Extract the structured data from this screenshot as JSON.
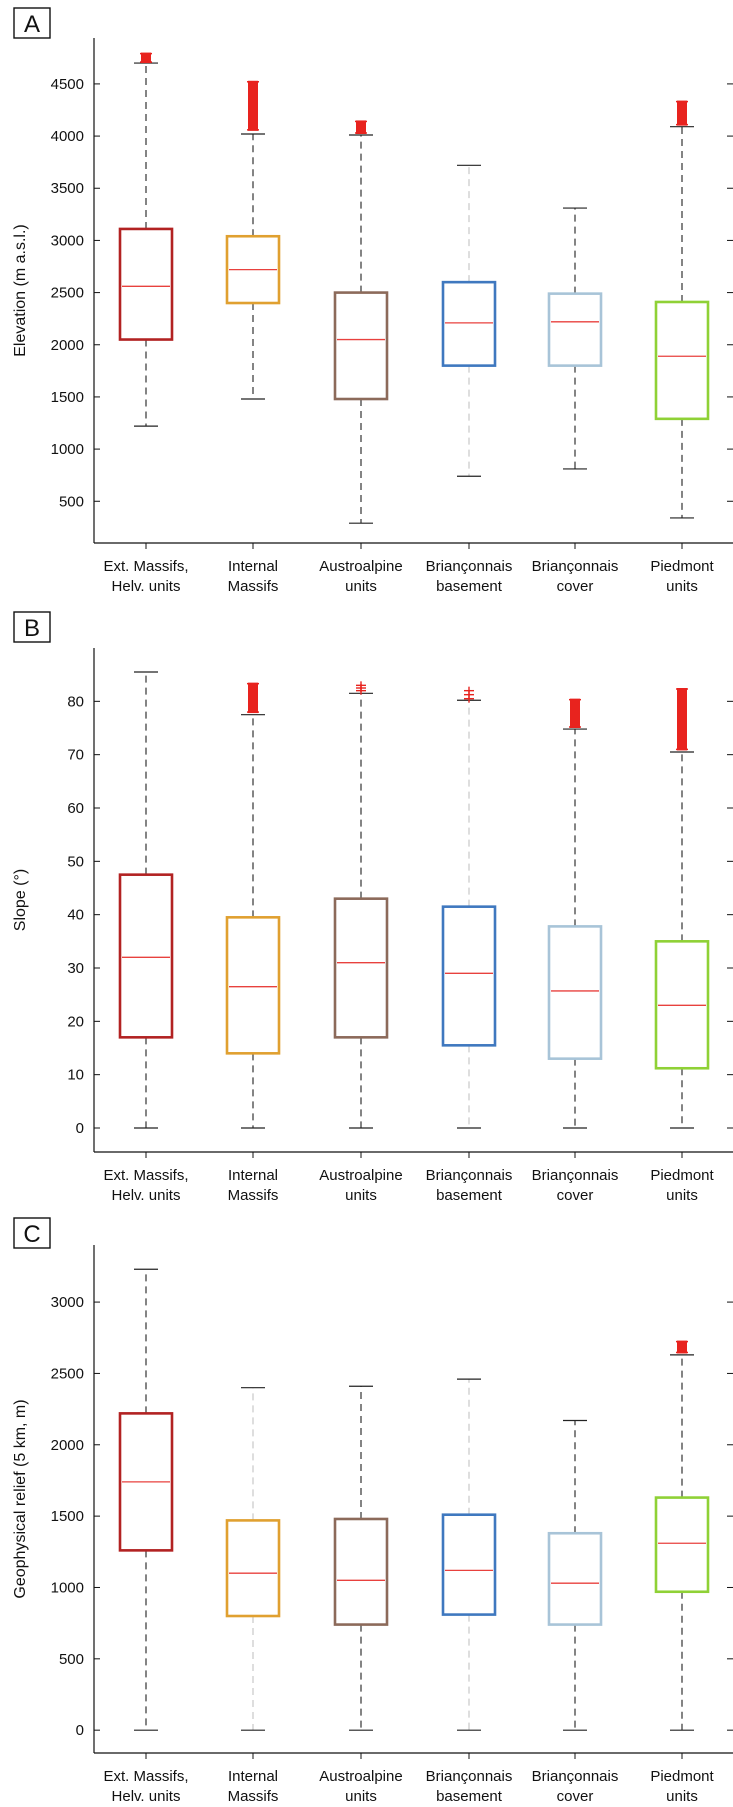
{
  "colors": {
    "ext_massifs": "#b22222",
    "internal_massifs": "#e0a030",
    "austroalpine": "#8c6a5a",
    "brianconnais_basement": "#3f78bf",
    "brianconnais_cover": "#a8c4d8",
    "piedmont": "#8fd136",
    "median": "#e8413e",
    "outlier": "#e8231e",
    "whisker": "#333333"
  },
  "categories": [
    [
      "Ext. Massifs,",
      "Helv. units"
    ],
    [
      "Internal",
      "Massifs"
    ],
    [
      "Austroalpine",
      "units"
    ],
    [
      "Briançonnais",
      "basement"
    ],
    [
      "Briançonnais",
      "cover"
    ],
    [
      "Piedmont",
      "units"
    ]
  ],
  "chart_data": [
    {
      "type": "boxplot",
      "panel": "A",
      "ylabel": "Elevation (m a.s.l.)",
      "ylim": [
        100,
        4940
      ],
      "yticks": [
        500,
        1000,
        1500,
        2000,
        2500,
        3000,
        3500,
        4000,
        4500
      ],
      "series": [
        {
          "category": "Ext. Massifs, Helv. units",
          "whisker_low": 1220,
          "q1": 2050,
          "median": 2560,
          "q3": 3110,
          "whisker_high": 4700,
          "outliers_low": 4700,
          "outliers_high": 4800,
          "color_key": "ext_massifs"
        },
        {
          "category": "Internal Massifs",
          "whisker_low": 1480,
          "q1": 2400,
          "median": 2720,
          "q3": 3040,
          "whisker_high": 4020,
          "outliers_low": 4050,
          "outliers_high": 4530,
          "color_key": "internal_massifs"
        },
        {
          "category": "Austroalpine units",
          "whisker_low": 290,
          "q1": 1480,
          "median": 2050,
          "q3": 2500,
          "whisker_high": 4010,
          "outliers_low": 4020,
          "outliers_high": 4150,
          "color_key": "austroalpine"
        },
        {
          "category": "Briançonnais basement",
          "whisker_low": 740,
          "q1": 1800,
          "median": 2210,
          "q3": 2600,
          "whisker_high": 3720,
          "outliers_low": null,
          "outliers_high": null,
          "color_key": "brianconnais_basement"
        },
        {
          "category": "Briançonnais cover",
          "whisker_low": 810,
          "q1": 1800,
          "median": 2220,
          "q3": 2490,
          "whisker_high": 3310,
          "outliers_low": null,
          "outliers_high": null,
          "color_key": "brianconnais_cover"
        },
        {
          "category": "Piedmont units",
          "whisker_low": 340,
          "q1": 1290,
          "median": 1890,
          "q3": 2410,
          "whisker_high": 4090,
          "outliers_low": 4100,
          "outliers_high": 4340,
          "color_key": "piedmont"
        }
      ]
    },
    {
      "type": "boxplot",
      "panel": "B",
      "ylabel": "Slope (°)",
      "ylim": [
        -4.5,
        90
      ],
      "yticks": [
        0,
        10,
        20,
        30,
        40,
        50,
        60,
        70,
        80
      ],
      "series": [
        {
          "category": "Ext. Massifs, Helv. units",
          "whisker_low": 0,
          "q1": 17,
          "median": 32,
          "q3": 47.5,
          "whisker_high": 85.5,
          "outliers_low": null,
          "outliers_high": null,
          "color_key": "ext_massifs"
        },
        {
          "category": "Internal Massifs",
          "whisker_low": 0,
          "q1": 14,
          "median": 26.5,
          "q3": 39.5,
          "whisker_high": 77.5,
          "outliers_low": 77.8,
          "outliers_high": 83.5,
          "color_key": "internal_massifs"
        },
        {
          "category": "Austroalpine units",
          "whisker_low": 0,
          "q1": 17,
          "median": 31,
          "q3": 43,
          "whisker_high": 81.5,
          "outliers_low": 82,
          "outliers_high": 83,
          "color_key": "austroalpine"
        },
        {
          "category": "Briançonnais basement",
          "whisker_low": 0,
          "q1": 15.5,
          "median": 29,
          "q3": 41.5,
          "whisker_high": 80.2,
          "outliers_low": 80.5,
          "outliers_high": 82,
          "color_key": "brianconnais_basement"
        },
        {
          "category": "Briançonnais cover",
          "whisker_low": 0,
          "q1": 13,
          "median": 25.7,
          "q3": 37.8,
          "whisker_high": 74.8,
          "outliers_low": 75,
          "outliers_high": 80.5,
          "color_key": "brianconnais_cover"
        },
        {
          "category": "Piedmont units",
          "whisker_low": 0,
          "q1": 11.2,
          "median": 23,
          "q3": 35,
          "whisker_high": 70.5,
          "outliers_low": 70.8,
          "outliers_high": 82.5,
          "color_key": "piedmont"
        }
      ]
    },
    {
      "type": "boxplot",
      "panel": "C",
      "ylabel": "Geophysical relief (5 km, m)",
      "ylim": [
        -160,
        3400
      ],
      "yticks": [
        0,
        500,
        1000,
        1500,
        2000,
        2500,
        3000
      ],
      "series": [
        {
          "category": "Ext. Massifs, Helv. units",
          "whisker_low": 0,
          "q1": 1260,
          "median": 1740,
          "q3": 2220,
          "whisker_high": 3230,
          "outliers_low": null,
          "outliers_high": null,
          "color_key": "ext_massifs"
        },
        {
          "category": "Internal Massifs",
          "whisker_low": 0,
          "q1": 800,
          "median": 1100,
          "q3": 1470,
          "whisker_high": 2400,
          "outliers_low": null,
          "outliers_high": null,
          "color_key": "internal_massifs"
        },
        {
          "category": "Austroalpine units",
          "whisker_low": 0,
          "q1": 740,
          "median": 1050,
          "q3": 1480,
          "whisker_high": 2410,
          "outliers_low": null,
          "outliers_high": null,
          "color_key": "austroalpine"
        },
        {
          "category": "Briançonnais basement",
          "whisker_low": 0,
          "q1": 810,
          "median": 1120,
          "q3": 1510,
          "whisker_high": 2460,
          "outliers_low": null,
          "outliers_high": null,
          "color_key": "brianconnais_basement"
        },
        {
          "category": "Briançonnais cover",
          "whisker_low": 0,
          "q1": 740,
          "median": 1030,
          "q3": 1380,
          "whisker_high": 2170,
          "outliers_low": null,
          "outliers_high": null,
          "color_key": "brianconnais_cover"
        },
        {
          "category": "Piedmont units",
          "whisker_low": 0,
          "q1": 970,
          "median": 1310,
          "q3": 1630,
          "whisker_high": 2630,
          "outliers_low": 2640,
          "outliers_high": 2730,
          "color_key": "piedmont"
        }
      ]
    }
  ]
}
